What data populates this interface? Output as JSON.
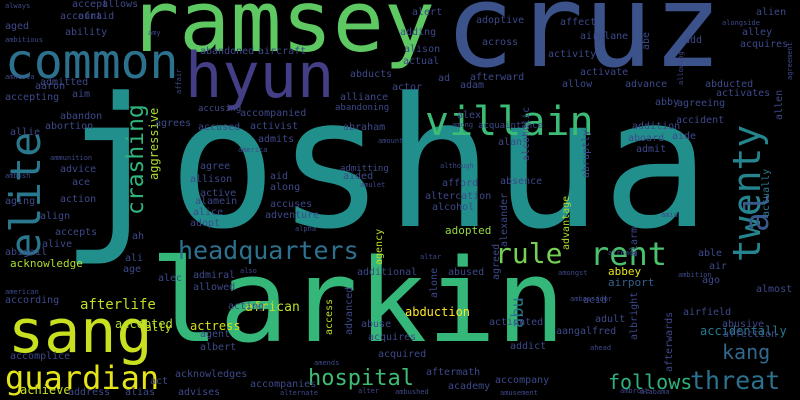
{
  "words": [
    {
      "text": "joshua",
      "color": "#21908d"
    },
    {
      "text": "larkin",
      "color": "#35b779"
    },
    {
      "text": "cruz",
      "color": "#3b528b"
    },
    {
      "text": "ramsey",
      "color": "#5ec962"
    },
    {
      "text": "hyun",
      "color": "#433e85"
    },
    {
      "text": "sang",
      "color": "#c8e020"
    },
    {
      "text": "common",
      "color": "#2c728e"
    },
    {
      "text": "villain",
      "color": "#3bbb75"
    },
    {
      "text": "elite",
      "color": "#2a788e"
    },
    {
      "text": "twenty",
      "color": "#25848e"
    },
    {
      "text": "crashing",
      "color": "#2fb47c"
    },
    {
      "text": "headquarters",
      "color": "#2c728e"
    },
    {
      "text": "guardian",
      "color": "#e5e419"
    },
    {
      "text": "rent",
      "color": "#4ac16d"
    },
    {
      "text": "rule",
      "color": "#75d054"
    },
    {
      "text": "al",
      "color": "#38598c"
    },
    {
      "text": "hospital",
      "color": "#3fbc73"
    },
    {
      "text": "threat",
      "color": "#2c728e"
    },
    {
      "text": "follows",
      "color": "#2db27d"
    },
    {
      "text": "kang",
      "color": "#31688e"
    },
    {
      "text": "abu",
      "color": "#2a788e"
    },
    {
      "text": "actually",
      "color": "#2a788e"
    },
    {
      "text": "aggressive",
      "color": "#addc30"
    },
    {
      "text": "accidentally",
      "color": "#2a788e"
    },
    {
      "text": "afterlife",
      "color": "#c2df23"
    },
    {
      "text": "abduction",
      "color": "#fde725"
    },
    {
      "text": "african",
      "color": "#bddf26"
    },
    {
      "text": "actress",
      "color": "#d2e21b"
    },
    {
      "text": "accepted",
      "color": "#addc30"
    },
    {
      "text": "ally",
      "color": "#c8e020"
    },
    {
      "text": "adopted",
      "color": "#95d840"
    },
    {
      "text": "abbey",
      "color": "#e5e419"
    },
    {
      "text": "airport",
      "color": "#34618d"
    },
    {
      "text": "agency",
      "color": "#c2df23"
    },
    {
      "text": "advantage",
      "color": "#addc30"
    },
    {
      "text": "access",
      "color": "#c2df23"
    },
    {
      "text": "achieve",
      "color": "#c8e020"
    },
    {
      "text": "acknowledge",
      "color": "#addc30"
    },
    {
      "text": "accusing",
      "color": "#3e4989"
    },
    {
      "text": "admitting",
      "color": "#3e4989"
    },
    {
      "text": "abandoning",
      "color": "#3e4989"
    },
    {
      "text": "acquaintance",
      "color": "#3e4989"
    },
    {
      "text": "amount",
      "color": "#3e4989"
    },
    {
      "text": "account",
      "color": "#3e4989"
    },
    {
      "text": "always",
      "color": "#3e4989"
    },
    {
      "text": "allows",
      "color": "#3e4989"
    },
    {
      "text": "accept",
      "color": "#3e4989"
    },
    {
      "text": "afraid",
      "color": "#3e4989"
    },
    {
      "text": "aged",
      "color": "#3e4989"
    },
    {
      "text": "ability",
      "color": "#3e4989"
    },
    {
      "text": "ambitious",
      "color": "#3e4989"
    },
    {
      "text": "amy",
      "color": "#3e4989"
    },
    {
      "text": "amnesia",
      "color": "#3e4989"
    },
    {
      "text": "aaron",
      "color": "#3e4989"
    },
    {
      "text": "aim",
      "color": "#3e4989"
    },
    {
      "text": "admitted",
      "color": "#3e4989"
    },
    {
      "text": "affair",
      "color": "#3e4989"
    },
    {
      "text": "accepting",
      "color": "#3e4989"
    },
    {
      "text": "abandon",
      "color": "#3e4989"
    },
    {
      "text": "abortion",
      "color": "#3e4989"
    },
    {
      "text": "allie",
      "color": "#3e4989"
    },
    {
      "text": "ammunition",
      "color": "#3e4989"
    },
    {
      "text": "ambush",
      "color": "#3e4989"
    },
    {
      "text": "aging",
      "color": "#3e4989"
    },
    {
      "text": "align",
      "color": "#3e4989"
    },
    {
      "text": "alive",
      "color": "#3e4989"
    },
    {
      "text": "accepts",
      "color": "#3e4989"
    },
    {
      "text": "advice",
      "color": "#3e4989"
    },
    {
      "text": "ace",
      "color": "#3e4989"
    },
    {
      "text": "action",
      "color": "#3e4989"
    },
    {
      "text": "abigail",
      "color": "#3e4989"
    },
    {
      "text": "american",
      "color": "#3e4989"
    },
    {
      "text": "according",
      "color": "#3e4989"
    },
    {
      "text": "accomplice",
      "color": "#3e4989"
    },
    {
      "text": "address",
      "color": "#3e4989"
    },
    {
      "text": "alias",
      "color": "#3e4989"
    },
    {
      "text": "advises",
      "color": "#3e4989"
    },
    {
      "text": "alternate",
      "color": "#3e4989"
    },
    {
      "text": "alter",
      "color": "#3e4989"
    },
    {
      "text": "ambushed",
      "color": "#3e4989"
    },
    {
      "text": "amusement",
      "color": "#3e4989"
    },
    {
      "text": "alabama",
      "color": "#3e4989"
    },
    {
      "text": "ambrose",
      "color": "#3e4989"
    },
    {
      "text": "aircraft",
      "color": "#3e4989"
    },
    {
      "text": "abandoned",
      "color": "#3e4989"
    },
    {
      "text": "alert",
      "color": "#3e4989"
    },
    {
      "text": "adding",
      "color": "#3e4989"
    },
    {
      "text": "alison",
      "color": "#3e4989"
    },
    {
      "text": "adoptive",
      "color": "#3e4989"
    },
    {
      "text": "affect",
      "color": "#3e4989"
    },
    {
      "text": "airplane",
      "color": "#3e4989"
    },
    {
      "text": "across",
      "color": "#3e4989"
    },
    {
      "text": "abe",
      "color": "#3e4989"
    },
    {
      "text": "add",
      "color": "#3e4989"
    },
    {
      "text": "alongside",
      "color": "#3e4989"
    },
    {
      "text": "alien",
      "color": "#3e4989"
    },
    {
      "text": "alley",
      "color": "#3e4989"
    },
    {
      "text": "acquires",
      "color": "#3e4989"
    },
    {
      "text": "agreement",
      "color": "#3e4989"
    },
    {
      "text": "actual",
      "color": "#3e4989"
    },
    {
      "text": "afterward",
      "color": "#3e4989"
    },
    {
      "text": "activity",
      "color": "#3e4989"
    },
    {
      "text": "allowing",
      "color": "#3e4989"
    },
    {
      "text": "activate",
      "color": "#3e4989"
    },
    {
      "text": "allow",
      "color": "#3e4989"
    },
    {
      "text": "advance",
      "color": "#3e4989"
    },
    {
      "text": "abducted",
      "color": "#3e4989"
    },
    {
      "text": "activates",
      "color": "#3e4989"
    },
    {
      "text": "allen",
      "color": "#3e4989"
    },
    {
      "text": "actor",
      "color": "#3e4989"
    },
    {
      "text": "alliance",
      "color": "#3e4989"
    },
    {
      "text": "abducts",
      "color": "#3e4989"
    },
    {
      "text": "ad",
      "color": "#3e4989"
    },
    {
      "text": "adam",
      "color": "#3e4989"
    },
    {
      "text": "abby",
      "color": "#3e4989"
    },
    {
      "text": "agreeing",
      "color": "#3e4989"
    },
    {
      "text": "accused",
      "color": "#3e4989"
    },
    {
      "text": "activist",
      "color": "#3e4989"
    },
    {
      "text": "accompanied",
      "color": "#3e4989"
    },
    {
      "text": "agrees",
      "color": "#3e4989"
    },
    {
      "text": "abraham",
      "color": "#3e4989"
    },
    {
      "text": "admits",
      "color": "#3e4989"
    },
    {
      "text": "america",
      "color": "#3e4989"
    },
    {
      "text": "alex",
      "color": "#3e4989"
    },
    {
      "text": "among",
      "color": "#3e4989"
    },
    {
      "text": "addition",
      "color": "#3e4989"
    },
    {
      "text": "accident",
      "color": "#3e4989"
    },
    {
      "text": "alan",
      "color": "#3e4989"
    },
    {
      "text": "alcoholic",
      "color": "#3e4989"
    },
    {
      "text": "abruptly",
      "color": "#3e4989"
    },
    {
      "text": "aboard",
      "color": "#3e4989"
    },
    {
      "text": "aide",
      "color": "#3e4989"
    },
    {
      "text": "admit",
      "color": "#3e4989"
    },
    {
      "text": "agree",
      "color": "#3e4989"
    },
    {
      "text": "aid",
      "color": "#3e4989"
    },
    {
      "text": "aided",
      "color": "#3e4989"
    },
    {
      "text": "amulet",
      "color": "#3e4989"
    },
    {
      "text": "although",
      "color": "#3e4989"
    },
    {
      "text": "afford",
      "color": "#3e4989"
    },
    {
      "text": "absence",
      "color": "#3e4989"
    },
    {
      "text": "allison",
      "color": "#3e4989"
    },
    {
      "text": "along",
      "color": "#3e4989"
    },
    {
      "text": "active",
      "color": "#3e4989"
    },
    {
      "text": "alamein",
      "color": "#3e4989"
    },
    {
      "text": "alice",
      "color": "#3e4989"
    },
    {
      "text": "accuses",
      "color": "#3e4989"
    },
    {
      "text": "adventure",
      "color": "#3e4989"
    },
    {
      "text": "alcohol",
      "color": "#3e4989"
    },
    {
      "text": "altercation",
      "color": "#3e4989"
    },
    {
      "text": "alexander",
      "color": "#3e4989"
    },
    {
      "text": "amid",
      "color": "#3e4989"
    },
    {
      "text": "alarm",
      "color": "#3e4989"
    },
    {
      "text": "adopt",
      "color": "#3e4989"
    },
    {
      "text": "ah",
      "color": "#3e4989"
    },
    {
      "text": "alpha",
      "color": "#3e4989"
    },
    {
      "text": "agreed",
      "color": "#3e4989"
    },
    {
      "text": "ali",
      "color": "#3e4989"
    },
    {
      "text": "age",
      "color": "#3e4989"
    },
    {
      "text": "alec",
      "color": "#3e4989"
    },
    {
      "text": "admiral",
      "color": "#3e4989"
    },
    {
      "text": "allowed",
      "color": "#3e4989"
    },
    {
      "text": "also",
      "color": "#3e4989"
    },
    {
      "text": "altar",
      "color": "#3e4989"
    },
    {
      "text": "alone",
      "color": "#3e4989"
    },
    {
      "text": "additional",
      "color": "#3e4989"
    },
    {
      "text": "abused",
      "color": "#3e4989"
    },
    {
      "text": "amongst",
      "color": "#3e4989"
    },
    {
      "text": "already",
      "color": "#3e4989"
    },
    {
      "text": "able",
      "color": "#3e4989"
    },
    {
      "text": "air",
      "color": "#3e4989"
    },
    {
      "text": "ambition",
      "color": "#3e4989"
    },
    {
      "text": "ago",
      "color": "#3e4989"
    },
    {
      "text": "almost",
      "color": "#3e4989"
    },
    {
      "text": "acting",
      "color": "#3e4989"
    },
    {
      "text": "ambassador",
      "color": "#3e4989"
    },
    {
      "text": "acid",
      "color": "#3e4989"
    },
    {
      "text": "advanced",
      "color": "#3e4989"
    },
    {
      "text": "abuse",
      "color": "#3e4989"
    },
    {
      "text": "activated",
      "color": "#3e4989"
    },
    {
      "text": "adult",
      "color": "#3e4989"
    },
    {
      "text": "albright",
      "color": "#3e4989"
    },
    {
      "text": "airfield",
      "color": "#3e4989"
    },
    {
      "text": "abusive",
      "color": "#3e4989"
    },
    {
      "text": "affection",
      "color": "#3e4989"
    },
    {
      "text": "agent",
      "color": "#3e4989"
    },
    {
      "text": "albert",
      "color": "#3e4989"
    },
    {
      "text": "acquires",
      "color": "#3e4989"
    },
    {
      "text": "aang",
      "color": "#3e4989"
    },
    {
      "text": "alfred",
      "color": "#3e4989"
    },
    {
      "text": "addict",
      "color": "#3e4989"
    },
    {
      "text": "ahead",
      "color": "#3e4989"
    },
    {
      "text": "afterwards",
      "color": "#3e4989"
    },
    {
      "text": "acquired",
      "color": "#3e4989"
    },
    {
      "text": "amends",
      "color": "#3e4989"
    },
    {
      "text": "aftermath",
      "color": "#3e4989"
    },
    {
      "text": "act",
      "color": "#3e4989"
    },
    {
      "text": "acknowledges",
      "color": "#3e4989"
    },
    {
      "text": "accompanies",
      "color": "#3e4989"
    },
    {
      "text": "academy",
      "color": "#3e4989"
    },
    {
      "text": "accompany",
      "color": "#3e4989"
    }
  ]
}
